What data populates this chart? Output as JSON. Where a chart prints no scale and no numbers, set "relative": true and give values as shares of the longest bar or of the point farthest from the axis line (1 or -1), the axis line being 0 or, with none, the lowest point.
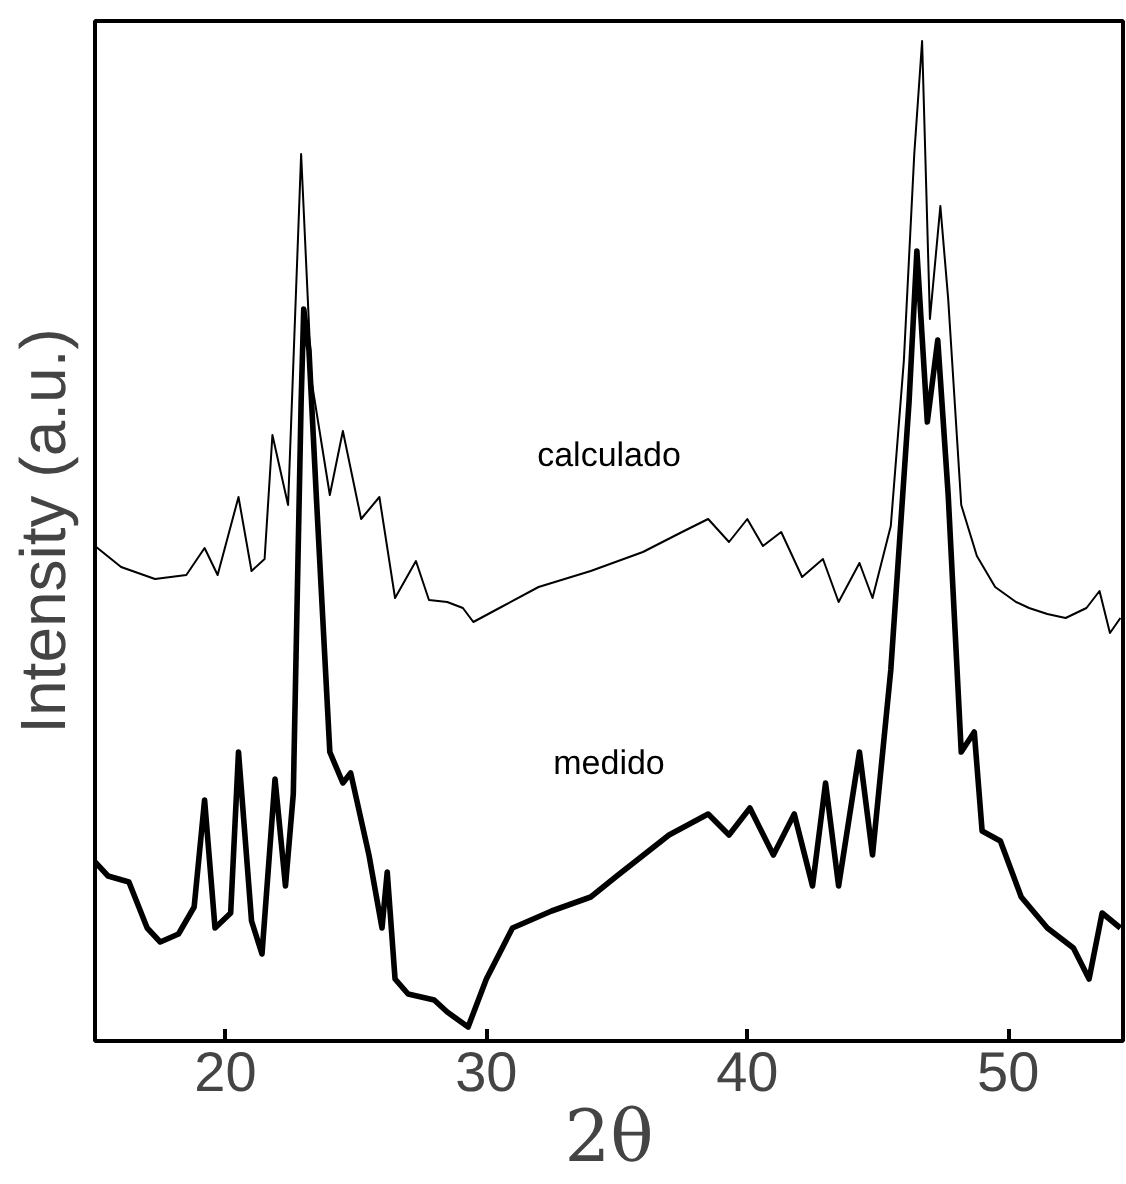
{
  "chart_data": {
    "type": "line",
    "xlabel": "2θ",
    "ylabel": "Intensity (a.u.)",
    "relative": true,
    "tick_labels": "x",
    "xlim": [
      15,
      54.4
    ],
    "xticks": [
      20,
      30,
      40,
      50
    ],
    "series": [
      {
        "name": "calculado",
        "color": "#000000",
        "x": [
          15,
          16,
          17.3,
          18.5,
          19.2,
          19.7,
          20.5,
          21,
          21.5,
          21.8,
          22.4,
          22.9,
          23.3,
          24,
          24.5,
          25.2,
          25.9,
          26.5,
          27.3,
          27.8,
          28.5,
          29.1,
          29.5,
          30.5,
          32,
          34,
          36,
          37.5,
          38.5,
          39.3,
          40,
          40.6,
          41.3,
          42.1,
          42.9,
          43.5,
          44.3,
          44.8,
          45.5,
          46,
          46.4,
          46.7,
          47,
          47.4,
          47.7,
          48.2,
          48.8,
          49.5,
          50.3,
          50.8,
          51.5,
          52.2,
          53,
          53.5,
          53.9,
          54.3
        ],
        "values": [
          0.495,
          0.474,
          0.462,
          0.466,
          0.493,
          0.466,
          0.544,
          0.47,
          0.482,
          0.606,
          0.536,
          0.887,
          0.66,
          0.546,
          0.61,
          0.522,
          0.544,
          0.443,
          0.48,
          0.441,
          0.439,
          0.433,
          0.419,
          0.433,
          0.454,
          0.47,
          0.489,
          0.509,
          0.522,
          0.499,
          0.522,
          0.495,
          0.509,
          0.464,
          0.482,
          0.439,
          0.478,
          0.443,
          0.515,
          0.68,
          0.887,
          1.0,
          0.722,
          0.835,
          0.742,
          0.536,
          0.485,
          0.454,
          0.439,
          0.433,
          0.427,
          0.423,
          0.433,
          0.45,
          0.408,
          0.423
        ]
      },
      {
        "name": "medido",
        "color": "#000000",
        "x": [
          15,
          15.5,
          16.3,
          17,
          17.5,
          18.2,
          18.8,
          19.2,
          19.6,
          20.2,
          20.5,
          21,
          21.4,
          21.9,
          22.3,
          22.6,
          22.9,
          23,
          23.2,
          23.5,
          24,
          24.5,
          24.8,
          25.5,
          26,
          26.2,
          26.5,
          27,
          28,
          28.5,
          29.3,
          30,
          31,
          32.5,
          34,
          35,
          37,
          38.5,
          39.3,
          40.1,
          41,
          41.8,
          42.5,
          43,
          43.5,
          44.3,
          44.8,
          45.5,
          46.2,
          46.5,
          46.9,
          47.3,
          47.7,
          48.2,
          48.7,
          49,
          49.7,
          50.5,
          51.5,
          52.5,
          53.1,
          53.6,
          54.3
        ],
        "values": [
          0.179,
          0.165,
          0.159,
          0.113,
          0.099,
          0.107,
          0.134,
          0.241,
          0.113,
          0.128,
          0.289,
          0.12,
          0.087,
          0.262,
          0.155,
          0.247,
          0.639,
          0.732,
          0.691,
          0.536,
          0.289,
          0.258,
          0.268,
          0.186,
          0.113,
          0.169,
          0.062,
          0.047,
          0.041,
          0.029,
          0.014,
          0.062,
          0.113,
          0.13,
          0.144,
          0.165,
          0.206,
          0.227,
          0.206,
          0.233,
          0.186,
          0.227,
          0.155,
          0.258,
          0.155,
          0.289,
          0.186,
          0.371,
          0.639,
          0.79,
          0.619,
          0.701,
          0.546,
          0.289,
          0.309,
          0.21,
          0.2,
          0.144,
          0.113,
          0.093,
          0.062,
          0.128,
          0.113
        ]
      }
    ]
  }
}
